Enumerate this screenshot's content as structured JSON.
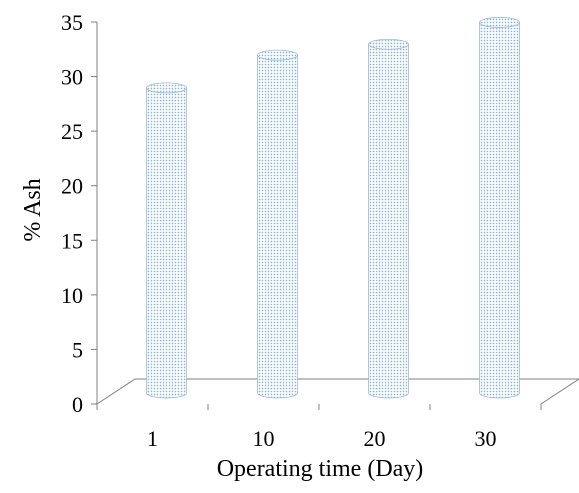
{
  "chart_data": {
    "type": "bar",
    "style": "3d-cylinder",
    "categories": [
      "1",
      "10",
      "20",
      "30"
    ],
    "values": [
      28,
      31,
      32,
      34
    ],
    "title": "",
    "xlabel": "Operating time (Day)",
    "ylabel": "% Ash",
    "ylim": [
      0,
      35
    ],
    "yticks": [
      0,
      5,
      10,
      15,
      20,
      25,
      30,
      35
    ],
    "grid": false,
    "legend": "none",
    "colors": {
      "bar_pattern": "#8db4d8",
      "bar_fill": "#ffffff",
      "bar_edge": "#9dbad6",
      "axis": "#808080"
    }
  }
}
